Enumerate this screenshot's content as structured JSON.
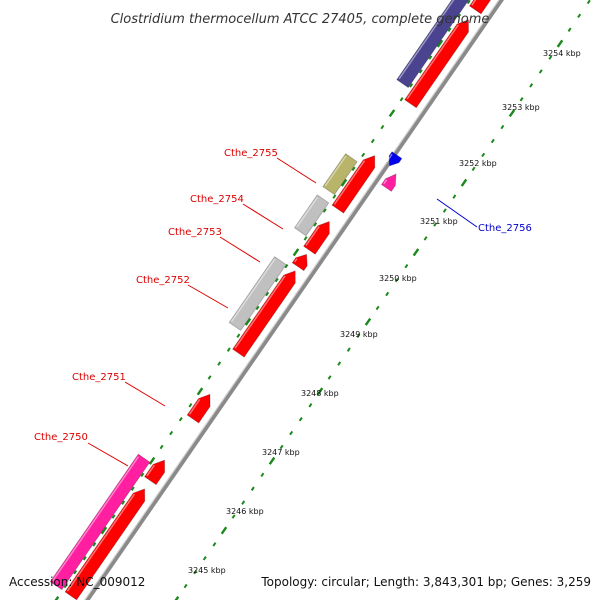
{
  "title": "Clostridium thermocellum ATCC 27405, complete genome",
  "footer": {
    "accession": "Accession: NC_009012",
    "summary": "Topology: circular; Length: 3,843,301 bp; Genes: 3,259"
  },
  "colors": {
    "forward_gene": "#ff0000",
    "reverse_gene": "#c0c0c0",
    "navy_gene": "#4a4490",
    "olive_gene": "#b8b46a",
    "pink_gene": "#ff1fa0",
    "blue_gene": "#0000ee",
    "tick": "#1a8a1a",
    "backbone": "#8a8a8a",
    "label_red": "#dd0000",
    "label_blue": "#0000cc"
  },
  "scale_labels": [
    "3245 kbp",
    "3246 kbp",
    "3247 kbp",
    "3248 kbp",
    "3249 kbp",
    "3250 kbp",
    "3251 kbp",
    "3252 kbp",
    "3253 kbp",
    "3254 kbp"
  ],
  "gene_labels": [
    {
      "text": "Cthe_2750",
      "color": "#dd0000"
    },
    {
      "text": "Cthe_2751",
      "color": "#dd0000"
    },
    {
      "text": "Cthe_2752",
      "color": "#dd0000"
    },
    {
      "text": "Cthe_2753",
      "color": "#dd0000"
    },
    {
      "text": "Cthe_2754",
      "color": "#dd0000"
    },
    {
      "text": "Cthe_2755",
      "color": "#dd0000"
    },
    {
      "text": "Cthe_2756",
      "color": "#0000cc"
    }
  ]
}
